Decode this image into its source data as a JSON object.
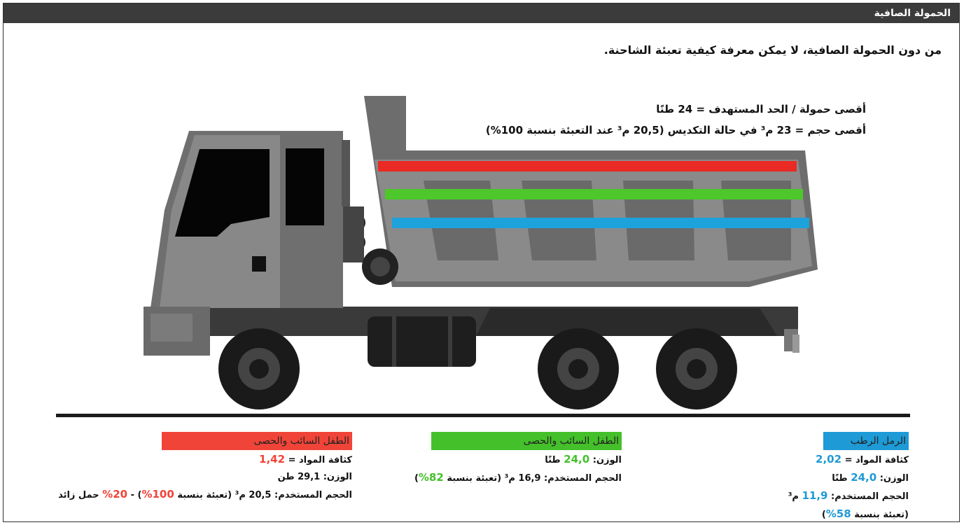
{
  "header": {
    "title": "الحمولة الصافية"
  },
  "intro": "من دون الحمولة الصافية، لا يمكن معرفة كيفية تعبئة الشاحنة.",
  "limits": [
    "أقصى حمولة / الحد المستهدف = 24 طنًا",
    "أقصى حجم = 23 م³ في حالة التكديس (20,5 م³ عند التعبئة بنسبة 100%)"
  ],
  "panels": [
    {
      "title": "الرمل الرطب",
      "color": "#1e9ad6",
      "lines": [
        [
          "كثافة المواد = ",
          "2,02"
        ],
        [
          "الوزن: ",
          "24,0",
          " طنًا"
        ],
        [
          "الحجم المستخدم: ",
          "11,9",
          " م³"
        ],
        [
          "(تعبئة بنسبة ",
          "58%",
          ")"
        ]
      ]
    },
    {
      "title": "الطفل السائب والحصى",
      "color": "#44c02a",
      "lines": [
        [
          "الوزن: ",
          "24,0",
          " طنًا"
        ],
        [
          "الحجم المستخدم: 16,9 م³ (تعبئة بنسبة ",
          "82%",
          ")"
        ]
      ]
    },
    {
      "title": "الطفل السائب والحصى",
      "color": "#f04438",
      "lines": [
        [
          "كثافة المواد = ",
          "1,42"
        ],
        [
          "الوزن: 29,1 طن"
        ],
        [
          "الحجم المستخدم: 20,5 م³ (تعبئة بنسبة ",
          "100%",
          ") - ",
          "20%",
          " حمل زائد"
        ]
      ]
    }
  ]
}
